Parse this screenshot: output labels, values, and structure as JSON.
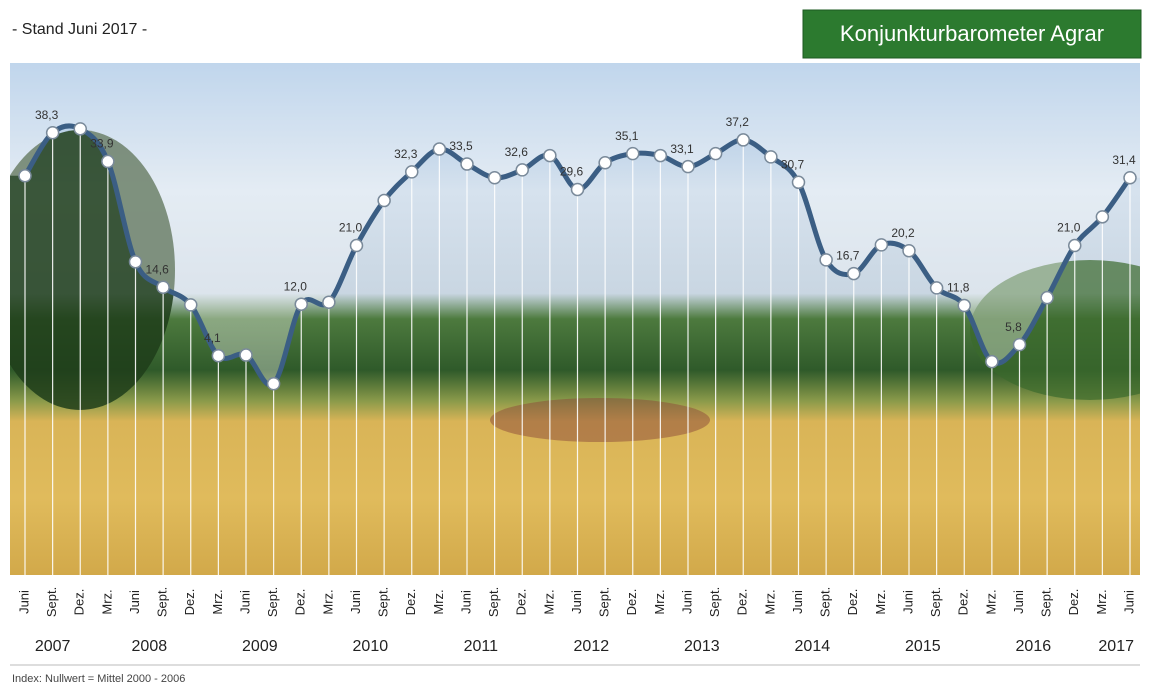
{
  "chart_data": {
    "type": "line",
    "subtitle": "- Stand Juni 2017 -",
    "badge": "Konjunkturbarometer Agrar",
    "footnote": "Index: Nullwert = Mittel 2000 - 2006",
    "categories": [
      "Juni",
      "Sept.",
      "Dez.",
      "Mrz.",
      "Juni",
      "Sept.",
      "Dez.",
      "Mrz.",
      "Juni",
      "Sept.",
      "Dez.",
      "Mrz.",
      "Juni",
      "Sept.",
      "Dez.",
      "Mrz.",
      "Juni",
      "Sept.",
      "Dez.",
      "Mrz.",
      "Juni",
      "Sept.",
      "Dez.",
      "Mrz.",
      "Juni",
      "Sept.",
      "Dez.",
      "Mrz.",
      "Juni",
      "Sept.",
      "Dez.",
      "Mrz.",
      "Juni",
      "Sept.",
      "Dez.",
      "Mrz.",
      "Juni",
      "Sept.",
      "Dez.",
      "Mrz.",
      "Juni"
    ],
    "years": [
      "2007",
      "2008",
      "2009",
      "2010",
      "2011",
      "2012",
      "2013",
      "2014",
      "2015",
      "2016",
      "2017"
    ],
    "values": [
      31.7,
      38.3,
      38.9,
      33.9,
      18.5,
      14.6,
      11.9,
      4.1,
      4.2,
      -0.2,
      12.0,
      12.3,
      21.0,
      27.9,
      32.3,
      35.8,
      33.5,
      31.4,
      32.6,
      34.8,
      29.6,
      33.7,
      35.1,
      34.8,
      33.1,
      35.1,
      37.2,
      34.6,
      30.7,
      18.8,
      16.7,
      21.1,
      20.2,
      14.5,
      11.8,
      3.2,
      5.8,
      13.0,
      21.0,
      25.4,
      31.4
    ],
    "value_labels": [
      null,
      "38,3",
      null,
      "33,9",
      null,
      "14,6",
      null,
      "4,1",
      null,
      null,
      "12,0",
      null,
      "21,0",
      null,
      "32,3",
      null,
      "33,5",
      null,
      "32,6",
      null,
      "29,6",
      null,
      "35,1",
      null,
      "33,1",
      null,
      "37,2",
      null,
      "30,7",
      null,
      "16,7",
      null,
      "20,2",
      null,
      "11,8",
      null,
      "5,8",
      null,
      "21,0",
      null,
      "31,4"
    ],
    "color": "#3b5e84",
    "ylim": [
      -30,
      49
    ]
  }
}
